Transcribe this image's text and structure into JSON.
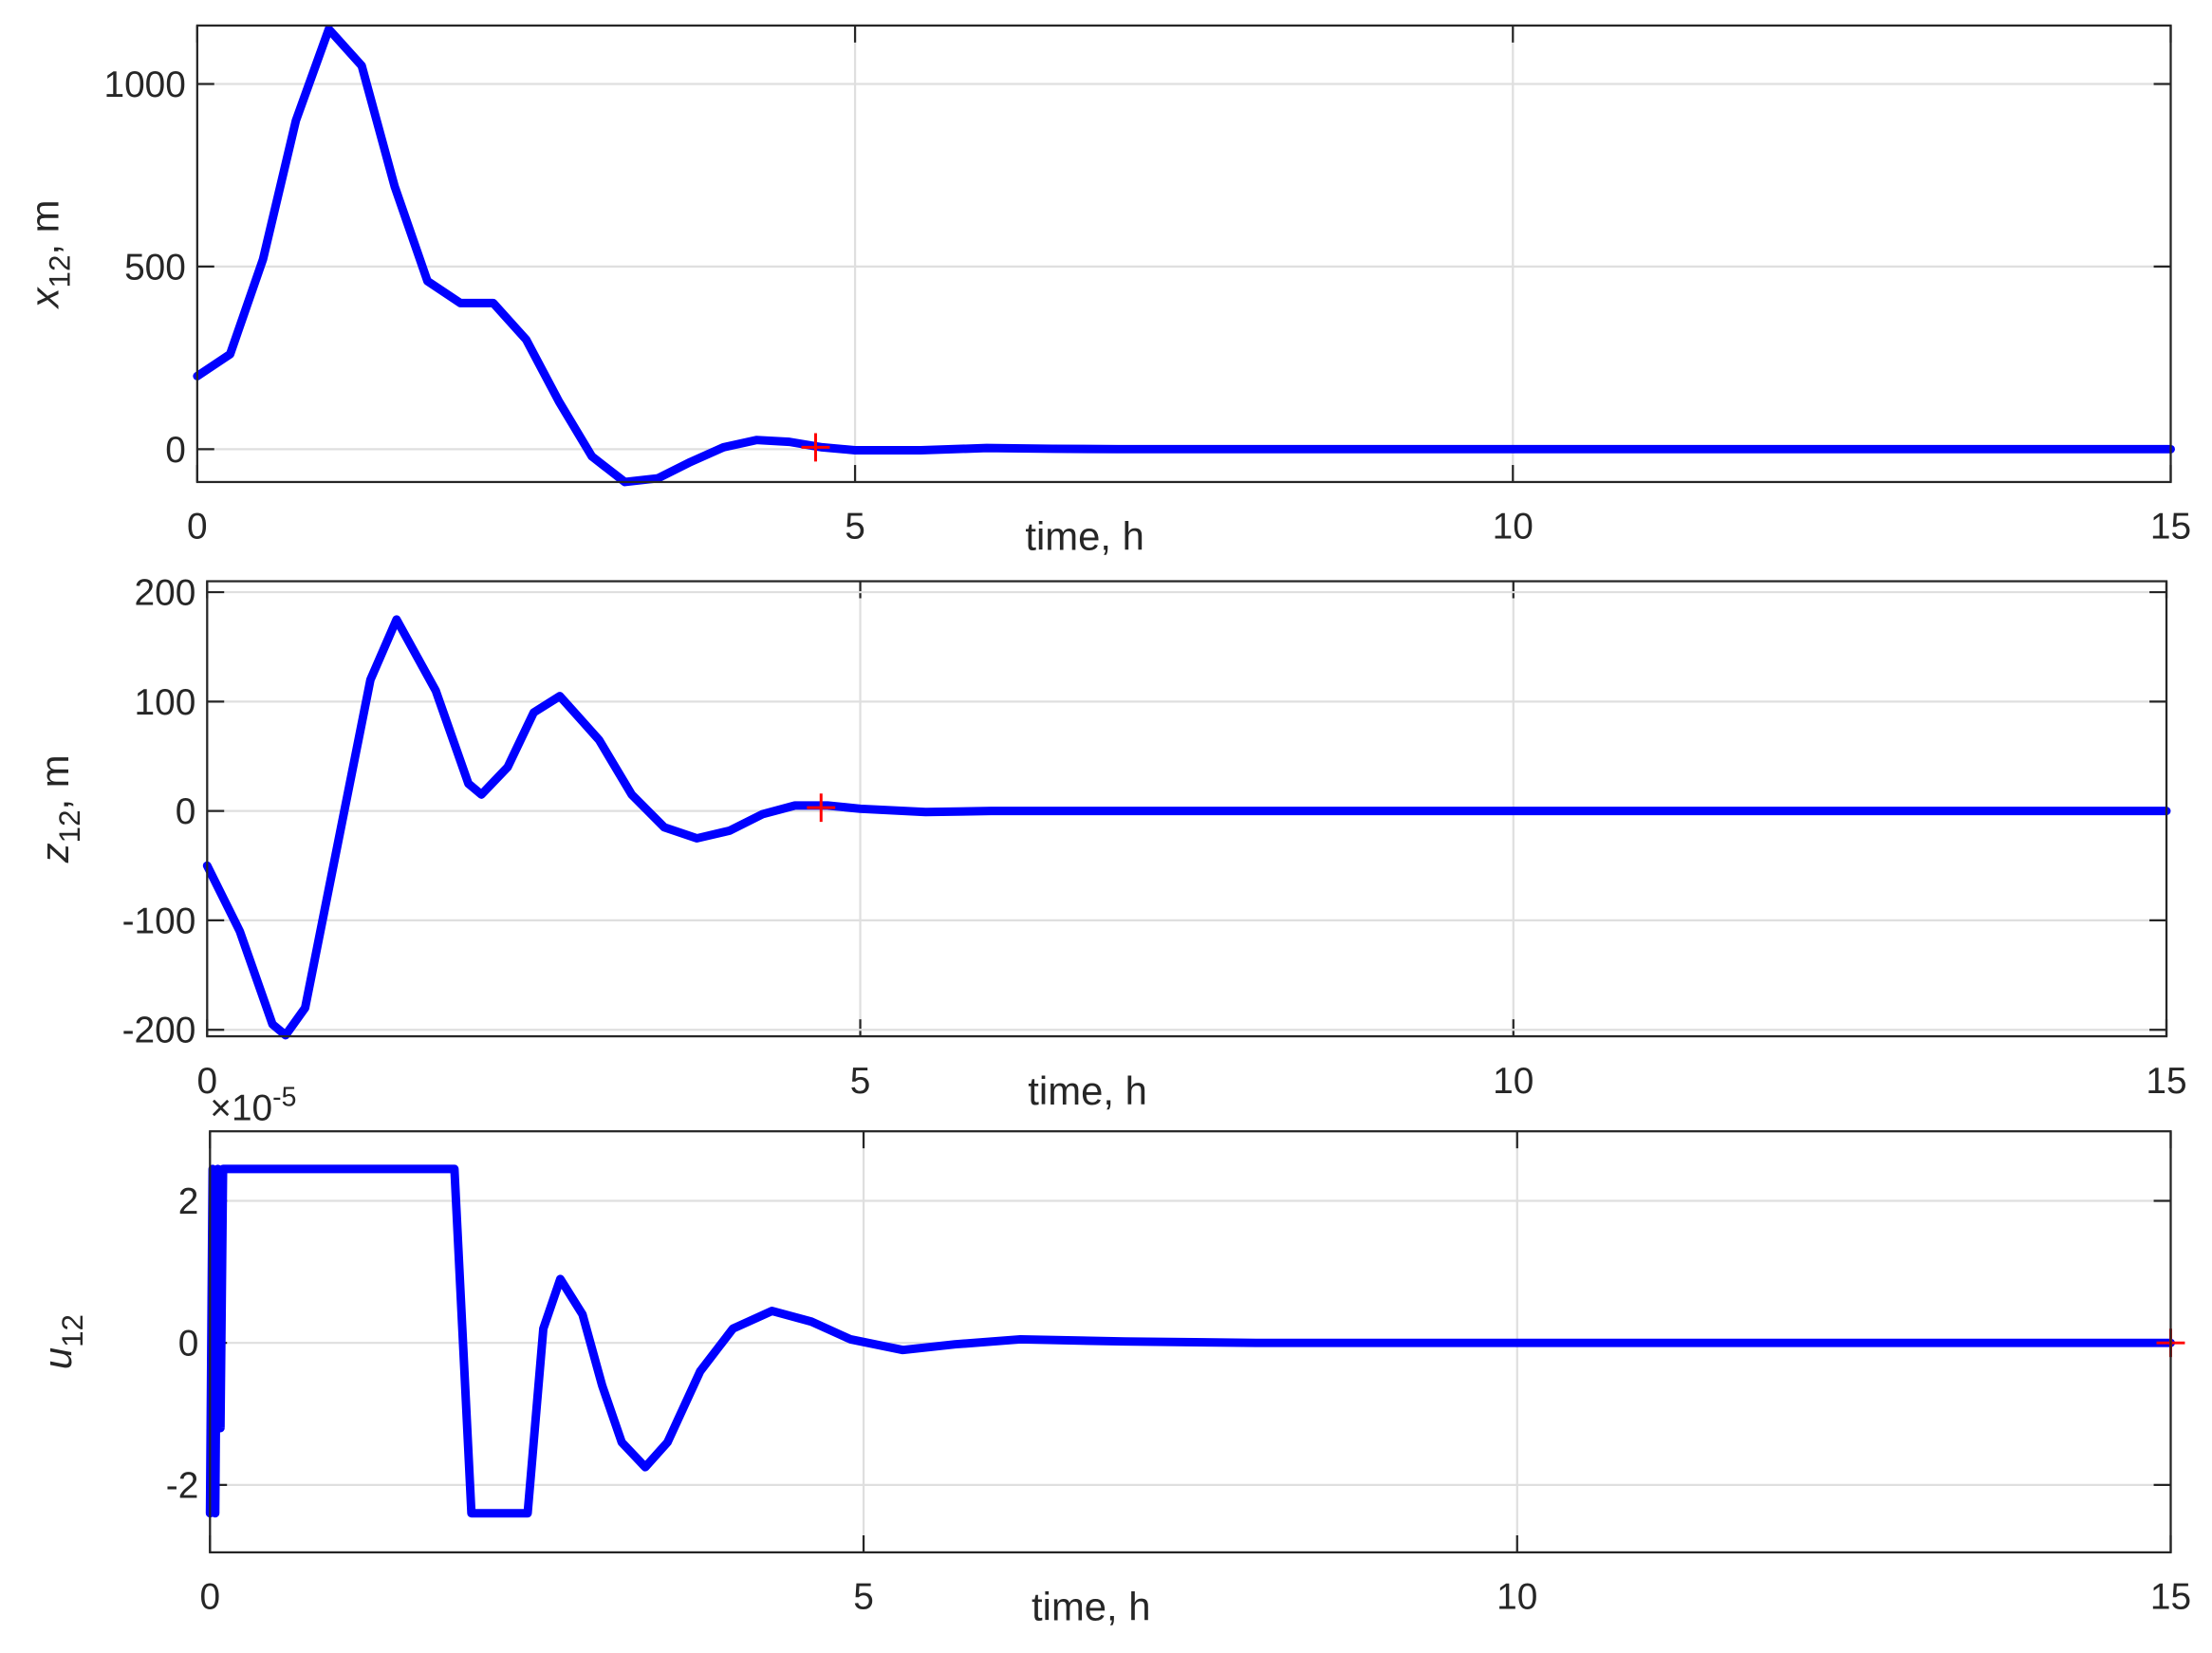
{
  "chart_data": [
    {
      "type": "line",
      "xlabel": "time, h",
      "ylabel": {
        "text": "x",
        "subscript": "12",
        "unit": ",  m"
      },
      "xlim": [
        0,
        15
      ],
      "xticks": [
        0,
        5,
        10,
        15
      ],
      "ylim": [
        -90,
        1160
      ],
      "yticks": [
        0,
        500,
        1000
      ],
      "grid": true,
      "x": [
        0,
        0.25,
        0.5,
        0.75,
        1.0,
        1.25,
        1.5,
        1.75,
        2.0,
        2.25,
        2.5,
        2.75,
        3.0,
        3.25,
        3.5,
        3.75,
        4.0,
        4.25,
        4.5,
        4.75,
        5.0,
        5.5,
        6.0,
        6.5,
        7.0,
        8.0,
        10.0,
        15.0
      ],
      "series": [
        {
          "color": "#0000ff",
          "values": [
            200,
            260,
            520,
            900,
            1150,
            1050,
            720,
            460,
            400,
            400,
            300,
            130,
            -20,
            -90,
            -80,
            -35,
            5,
            25,
            20,
            5,
            -3,
            -3,
            3,
            1,
            0,
            0,
            0,
            0
          ]
        }
      ],
      "marker": {
        "x": 4.7,
        "y": 5,
        "color": "#ff0000"
      }
    },
    {
      "type": "line",
      "xlabel": "time, h",
      "ylabel": {
        "text": "z",
        "subscript": "12",
        "unit": ",  m"
      },
      "xlim": [
        0,
        15
      ],
      "xticks": [
        0,
        5,
        10,
        15
      ],
      "ylim": [
        -206,
        210
      ],
      "yticks": [
        -200,
        -100,
        0,
        100,
        200
      ],
      "grid": true,
      "x": [
        0,
        0.25,
        0.5,
        0.6,
        0.75,
        1.0,
        1.25,
        1.45,
        1.75,
        2.0,
        2.1,
        2.3,
        2.5,
        2.7,
        3.0,
        3.25,
        3.5,
        3.75,
        4.0,
        4.25,
        4.5,
        4.75,
        5.0,
        5.5,
        6.0,
        15.0
      ],
      "series": [
        {
          "color": "#0000ff",
          "values": [
            -50,
            -110,
            -195,
            -205,
            -180,
            -30,
            120,
            175,
            110,
            25,
            15,
            40,
            90,
            105,
            65,
            15,
            -15,
            -25,
            -18,
            -3,
            5,
            5,
            2,
            -1,
            0,
            0
          ]
        }
      ],
      "marker": {
        "x": 4.7,
        "y": 3,
        "color": "#ff0000"
      }
    },
    {
      "type": "line",
      "xlabel": "time, h",
      "ylabel": {
        "text": "u",
        "subscript": "12"
      },
      "scale_label": {
        "base": "×10",
        "exponent": "-5"
      },
      "xlim": [
        0,
        15
      ],
      "xticks": [
        0,
        5,
        10,
        15
      ],
      "ylim": [
        -2.95,
        2.98
      ],
      "yticks": [
        -2,
        0,
        2
      ],
      "grid": true,
      "x": [
        0,
        0.02,
        0.04,
        0.06,
        0.08,
        0.1,
        1.87,
        2.0,
        2.43,
        2.55,
        2.68,
        2.85,
        3.0,
        3.15,
        3.33,
        3.5,
        3.75,
        4.0,
        4.3,
        4.6,
        4.9,
        5.3,
        5.7,
        6.2,
        7.0,
        8.0,
        15.0
      ],
      "series": [
        {
          "color": "#0000ff",
          "values": [
            -2.4,
            2.45,
            -2.4,
            2.45,
            -1.2,
            2.45,
            2.45,
            -2.4,
            -2.4,
            0.2,
            0.9,
            0.4,
            -0.6,
            -1.4,
            -1.75,
            -1.4,
            -0.4,
            0.2,
            0.45,
            0.3,
            0.05,
            -0.1,
            -0.02,
            0.05,
            0.02,
            0,
            0
          ]
        }
      ],
      "marker": {
        "x": 15,
        "y": 0,
        "color": "#ff0000"
      }
    }
  ]
}
